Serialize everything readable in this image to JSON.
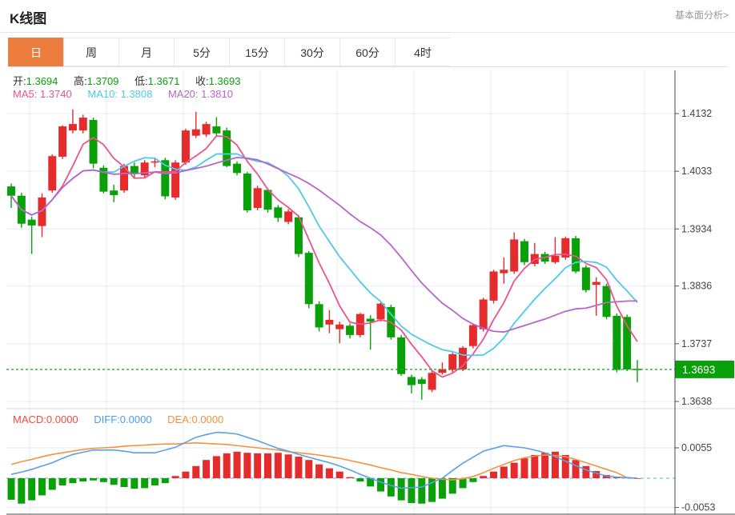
{
  "header": {
    "title": "K线图",
    "more_link": "基本面分析>"
  },
  "tabs": [
    {
      "key": "day",
      "label": "日",
      "active": true
    },
    {
      "key": "week",
      "label": "周",
      "active": false
    },
    {
      "key": "month",
      "label": "月",
      "active": false
    },
    {
      "key": "5min",
      "label": "5分",
      "active": false
    },
    {
      "key": "15min",
      "label": "15分",
      "active": false
    },
    {
      "key": "30min",
      "label": "30分",
      "active": false
    },
    {
      "key": "60min",
      "label": "60分",
      "active": false
    },
    {
      "key": "4hour",
      "label": "4时",
      "active": false
    }
  ],
  "quote": {
    "open": {
      "label": "开:",
      "value": "1.3694"
    },
    "high": {
      "label": "高:",
      "value": "1.3709"
    },
    "low": {
      "label": "低:",
      "value": "1.3671"
    },
    "close": {
      "label": "收:",
      "value": "1.3693"
    },
    "value_color": "#0aa00a"
  },
  "ma": {
    "ma5": {
      "label": "MA5:",
      "value": "1.3740",
      "color": "#ec528c"
    },
    "ma10": {
      "label": "MA10:",
      "value": "1.3808",
      "color": "#4fc9e6"
    },
    "ma20": {
      "label": "MA20:",
      "value": "1.3810",
      "color": "#b666c9"
    }
  },
  "macd_header": {
    "macd": {
      "label": "MACD:",
      "value": "0.0000",
      "color": "#f04c3c"
    },
    "diff": {
      "label": "DIFF:",
      "value": "0.0000",
      "color": "#4a9bee"
    },
    "dea": {
      "label": "DEA:",
      "value": "0.0000",
      "color": "#f7903b"
    }
  },
  "chart_data": {
    "type": "candlestick",
    "indicator": "MACD",
    "period": "daily",
    "up_color": "#e52b2b",
    "down_color": "#0aa00a",
    "grid_color": "#e7ecf3",
    "price_axis": {
      "ticks": [
        1.4132,
        1.4033,
        1.3934,
        1.3836,
        1.3737,
        1.3638
      ],
      "max": 1.4132,
      "min": 1.3638
    },
    "current_price": {
      "value": "1.3693",
      "price": 1.3693,
      "box_color": "#0aa00a",
      "line_color": "#2aa82a"
    },
    "candles": [
      [
        1.4007,
        1.4012,
        1.397,
        1.3991
      ],
      [
        1.3991,
        1.3996,
        1.3936,
        1.3943
      ],
      [
        1.395,
        1.3955,
        1.3891,
        1.394
      ],
      [
        1.3939,
        1.3995,
        1.392,
        1.3988
      ],
      [
        1.4,
        1.4062,
        1.3996,
        1.4059
      ],
      [
        1.4058,
        1.4112,
        1.4054,
        1.411
      ],
      [
        1.4103,
        1.4139,
        1.4098,
        1.4114
      ],
      [
        1.4103,
        1.413,
        1.4098,
        1.4125
      ],
      [
        1.4121,
        1.4125,
        1.4038,
        1.4046
      ],
      [
        1.4039,
        1.4043,
        1.3995,
        1.3998
      ],
      [
        1.4,
        1.401,
        1.398,
        1.3992
      ],
      [
        1.4,
        1.4046,
        1.3996,
        1.4042
      ],
      [
        1.4042,
        1.4048,
        1.402,
        1.4028
      ],
      [
        1.4026,
        1.4052,
        1.4022,
        1.4048
      ],
      [
        1.4048,
        1.4055,
        1.404,
        1.405
      ],
      [
        1.4052,
        1.4056,
        1.3985,
        1.399
      ],
      [
        1.3988,
        1.4052,
        1.3984,
        1.4048
      ],
      [
        1.4048,
        1.4106,
        1.4044,
        1.4103
      ],
      [
        1.4094,
        1.4135,
        1.409,
        1.4105
      ],
      [
        1.4096,
        1.4118,
        1.4092,
        1.4114
      ],
      [
        1.411,
        1.4126,
        1.4094,
        1.4098
      ],
      [
        1.4103,
        1.4108,
        1.404,
        1.4042
      ],
      [
        1.4046,
        1.405,
        1.4026,
        1.403
      ],
      [
        1.4029,
        1.4032,
        1.3962,
        1.3966
      ],
      [
        1.397,
        1.4008,
        1.3966,
        1.4004
      ],
      [
        1.4001,
        1.4004,
        1.3962,
        1.3967
      ],
      [
        1.3971,
        1.3975,
        1.3946,
        1.3953
      ],
      [
        1.3946,
        1.3968,
        1.3942,
        1.3964
      ],
      [
        1.3954,
        1.3958,
        1.3886,
        1.3891
      ],
      [
        1.3893,
        1.3896,
        1.3798,
        1.3805
      ],
      [
        1.3805,
        1.381,
        1.3758,
        1.3765
      ],
      [
        1.377,
        1.3795,
        1.3755,
        1.3778
      ],
      [
        1.3762,
        1.3775,
        1.3738,
        1.377
      ],
      [
        1.3768,
        1.3772,
        1.3746,
        1.3752
      ],
      [
        1.3752,
        1.379,
        1.3748,
        1.3788
      ],
      [
        1.378,
        1.3786,
        1.3727,
        1.3775
      ],
      [
        1.3779,
        1.3808,
        1.3775,
        1.3806
      ],
      [
        1.38,
        1.3804,
        1.3744,
        1.3748
      ],
      [
        1.3748,
        1.3752,
        1.3682,
        1.3685
      ],
      [
        1.368,
        1.3684,
        1.3652,
        1.3666
      ],
      [
        1.3676,
        1.368,
        1.3641,
        1.3668
      ],
      [
        1.3658,
        1.369,
        1.3654,
        1.3687
      ],
      [
        1.3687,
        1.3705,
        1.3684,
        1.3693
      ],
      [
        1.3692,
        1.3722,
        1.3688,
        1.3719
      ],
      [
        1.3693,
        1.3733,
        1.369,
        1.373
      ],
      [
        1.3733,
        1.3772,
        1.3729,
        1.3769
      ],
      [
        1.3762,
        1.3816,
        1.3758,
        1.3813
      ],
      [
        1.3811,
        1.3864,
        1.3806,
        1.3861
      ],
      [
        1.3858,
        1.3885,
        1.384,
        1.3864
      ],
      [
        1.3861,
        1.3928,
        1.3857,
        1.3916
      ],
      [
        1.3913,
        1.3917,
        1.3872,
        1.3877
      ],
      [
        1.3874,
        1.391,
        1.387,
        1.3891
      ],
      [
        1.3891,
        1.3895,
        1.3874,
        1.3878
      ],
      [
        1.3877,
        1.392,
        1.3874,
        1.3888
      ],
      [
        1.3885,
        1.3921,
        1.3881,
        1.3918
      ],
      [
        1.3918,
        1.3922,
        1.3858,
        1.3861
      ],
      [
        1.3868,
        1.3872,
        1.3825,
        1.3829
      ],
      [
        1.3838,
        1.3851,
        1.3785,
        1.3843
      ],
      [
        1.3836,
        1.384,
        1.3779,
        1.3783
      ],
      [
        1.3785,
        1.3789,
        1.3688,
        1.3692
      ],
      [
        1.3783,
        1.3787,
        1.369,
        1.3693
      ],
      [
        1.3694,
        1.3709,
        1.3671,
        1.3693
      ]
    ],
    "ma_periods": [
      5,
      10,
      20
    ],
    "macd": {
      "axis_ticks": [
        0.0055,
        -0.0053
      ],
      "diff_color": "#5aa0e6",
      "dea_color": "#f5923e",
      "zero_line_color": "#aed8f0",
      "hist": [
        -0.0039,
        -0.0046,
        -0.004,
        -0.0031,
        -0.0021,
        -0.0013,
        -0.0009,
        -0.0006,
        -0.0004,
        -0.0007,
        -0.0012,
        -0.0016,
        -0.0019,
        -0.0018,
        -0.0013,
        -0.0009,
        0.0004,
        0.0012,
        0.0022,
        0.0033,
        0.004,
        0.0045,
        0.0048,
        0.0046,
        0.0045,
        0.0045,
        0.0046,
        0.0043,
        0.0039,
        0.0033,
        0.0025,
        0.0018,
        0.0012,
        0.0002,
        -0.0006,
        -0.0015,
        -0.0024,
        -0.0033,
        -0.004,
        -0.0045,
        -0.0046,
        -0.0043,
        -0.0037,
        -0.0028,
        -0.0018,
        -0.0007,
        0.0004,
        0.0012,
        0.0021,
        0.0028,
        0.0036,
        0.0042,
        0.0046,
        0.0048,
        0.0042,
        0.0033,
        0.0022,
        0.0013,
        0.0006,
        0.0003,
        0.0001,
        0.0
      ],
      "diff": [
        0.0007,
        0.0011,
        0.0016,
        0.0022,
        0.0028,
        0.0036,
        0.0043,
        0.0047,
        0.0051,
        0.0051,
        0.0051,
        0.0049,
        0.0046,
        0.0046,
        0.0046,
        0.0051,
        0.0056,
        0.0065,
        0.0074,
        0.0079,
        0.0083,
        0.0082,
        0.008,
        0.0074,
        0.0068,
        0.0061,
        0.0054,
        0.0049,
        0.0043,
        0.0038,
        0.0033,
        0.0028,
        0.0022,
        0.0015,
        0.0007,
        0.0,
        -0.0007,
        -0.0013,
        -0.0018,
        -0.0017,
        -0.0016,
        -0.0008,
        0.0,
        0.0014,
        0.0027,
        0.0038,
        0.0049,
        0.0054,
        0.0059,
        0.0057,
        0.0055,
        0.0051,
        0.0046,
        0.0039,
        0.0031,
        0.0023,
        0.0015,
        0.0009,
        0.0004,
        0.0002,
        0.0001,
        0.0
      ],
      "dea": [
        0.0025,
        0.003,
        0.0034,
        0.0039,
        0.0043,
        0.0046,
        0.0049,
        0.0052,
        0.0054,
        0.0055,
        0.0056,
        0.0058,
        0.0059,
        0.006,
        0.0061,
        0.0062,
        0.0062,
        0.0063,
        0.0064,
        0.0063,
        0.0062,
        0.0061,
        0.0059,
        0.0057,
        0.0055,
        0.0053,
        0.0051,
        0.0048,
        0.0046,
        0.0044,
        0.0042,
        0.0039,
        0.0036,
        0.0032,
        0.0028,
        0.0024,
        0.0019,
        0.0015,
        0.001,
        0.0007,
        0.0003,
        0.0,
        -0.0002,
        -0.0003,
        -0.0001,
        0.0003,
        0.001,
        0.0018,
        0.0025,
        0.0032,
        0.0037,
        0.004,
        0.0042,
        0.0041,
        0.0039,
        0.0034,
        0.0028,
        0.0022,
        0.0016,
        0.001,
        0.0001,
        0.0
      ]
    }
  }
}
